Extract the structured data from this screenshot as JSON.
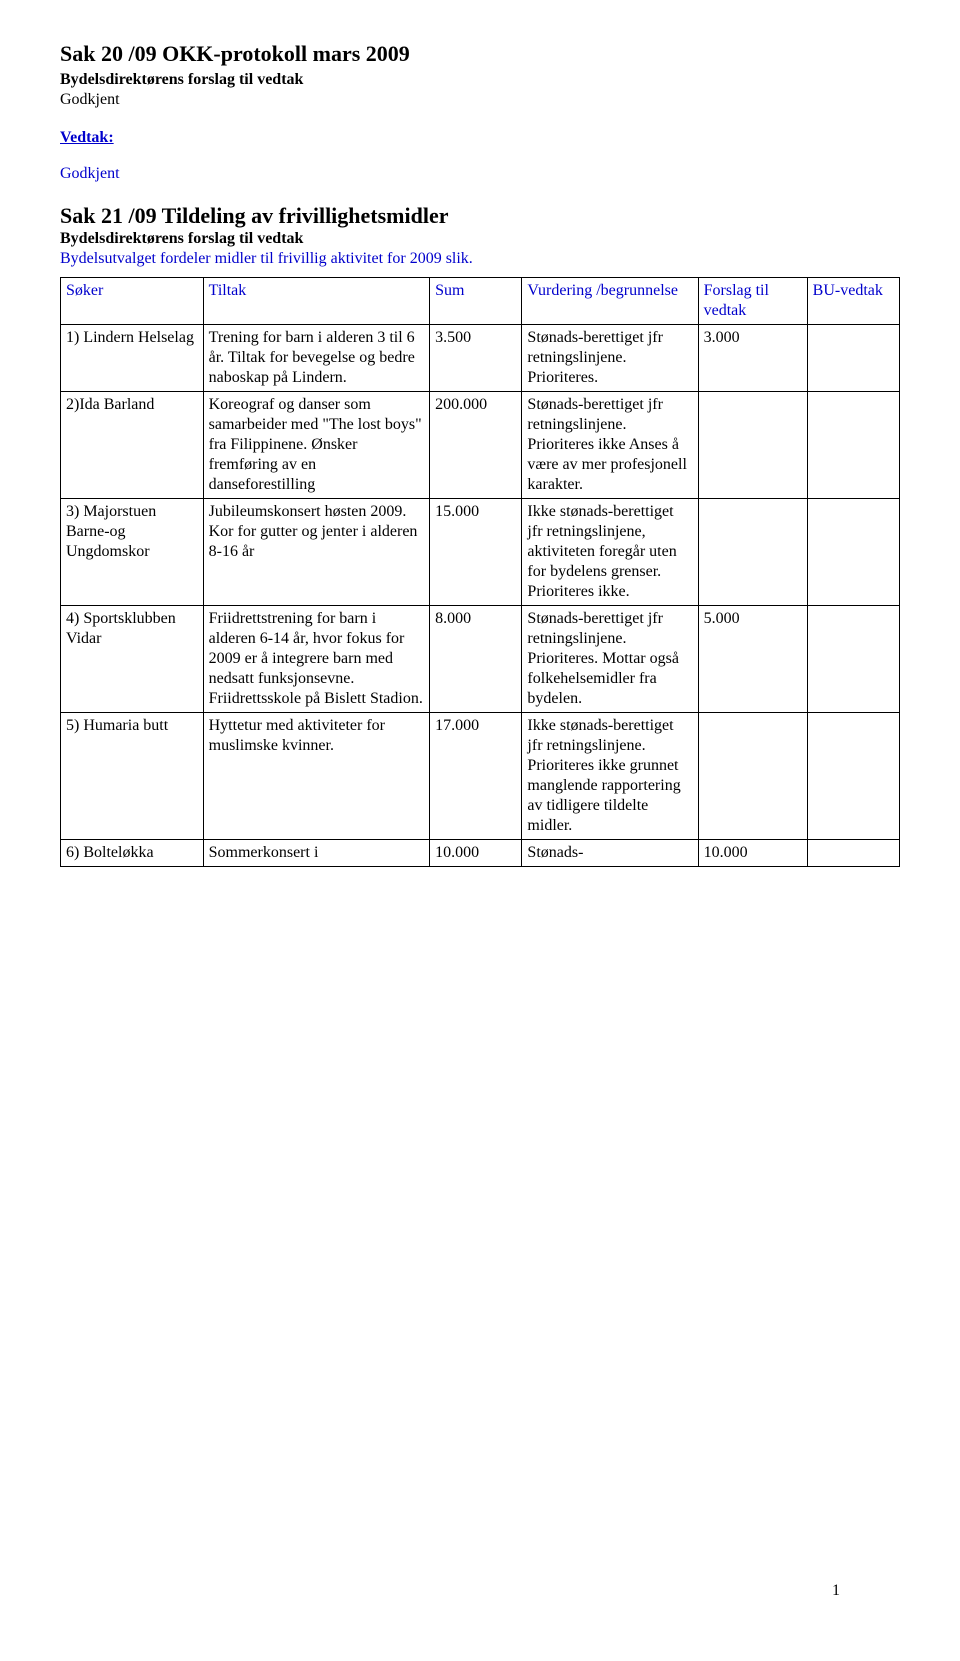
{
  "section1": {
    "title": "Sak 20 /09  OKK-protokoll mars 2009",
    "line1": "Bydelsdirektørens forslag til vedtak",
    "line2": "Godkjent",
    "vedtak_label": "Vedtak:",
    "vedtak_value": "Godkjent"
  },
  "section2": {
    "title": "Sak 21 /09  Tildeling av frivillighetsmidler",
    "line1": "Bydelsdirektørens forslag til vedtak",
    "line2": "Bydelsutvalget fordeler midler til frivillig aktivitet for 2009 slik."
  },
  "table": {
    "headers": [
      "Søker",
      "Tiltak",
      "Sum",
      "Vurdering /begrunnelse",
      "Forslag til vedtak",
      "BU-vedtak"
    ],
    "rows": [
      {
        "soker": "1) Lindern Helselag",
        "tiltak": "Trening for barn i alderen 3 til 6 år. Tiltak for bevegelse og bedre naboskap på Lindern.",
        "sum": "3.500",
        "vurd": "Stønads-berettiget jfr retningslinjene. Prioriteres.",
        "forslag": "3.000",
        "bu": ""
      },
      {
        "soker": "2)Ida Barland",
        "tiltak": "Koreograf og danser som samarbeider med \"The lost boys\" fra Filippinene. Ønsker fremføring av en danseforestilling",
        "sum": "200.000",
        "vurd": "Stønads-berettiget jfr retningslinjene. Prioriteres ikke Anses å være av mer profesjonell karakter.",
        "forslag": "",
        "bu": ""
      },
      {
        "soker": "3) Majorstuen Barne-og Ungdomskor",
        "tiltak": "Jubileumskonsert høsten 2009. Kor for gutter og jenter i alderen 8-16 år",
        "sum": "15.000",
        "vurd": "Ikke stønads-berettiget jfr retningslinjene, aktiviteten foregår uten for bydelens grenser. Prioriteres ikke.",
        "forslag": "",
        "bu": ""
      },
      {
        "soker": "4) Sportsklubben Vidar",
        "tiltak": "Friidrettstrening for barn i alderen 6-14 år, hvor fokus for 2009 er å integrere barn med nedsatt funksjonsevne. Friidrettsskole på Bislett Stadion.",
        "sum": "8.000",
        "vurd": "Stønads-berettiget jfr retningslinjene. Prioriteres. Mottar også folkehelsemidler fra bydelen.",
        "forslag": "5.000",
        "bu": ""
      },
      {
        "soker": "5)  Humaria butt",
        "tiltak": "Hyttetur med aktiviteter for muslimske kvinner.",
        "sum": "17.000",
        "vurd": "Ikke stønads-berettiget jfr retningslinjene. Prioriteres ikke grunnet manglende rapportering av tidligere tildelte midler.",
        "forslag": "",
        "bu": ""
      },
      {
        "soker": "6) Bolteløkka",
        "tiltak": "Sommerkonsert i",
        "sum": "10.000",
        "vurd": "Stønads-",
        "forslag": "10.000",
        "bu": ""
      }
    ]
  },
  "page_number": "1",
  "colors": {
    "link": "#0000cc",
    "border": "#000000",
    "text": "#000000",
    "bg": "#ffffff"
  }
}
